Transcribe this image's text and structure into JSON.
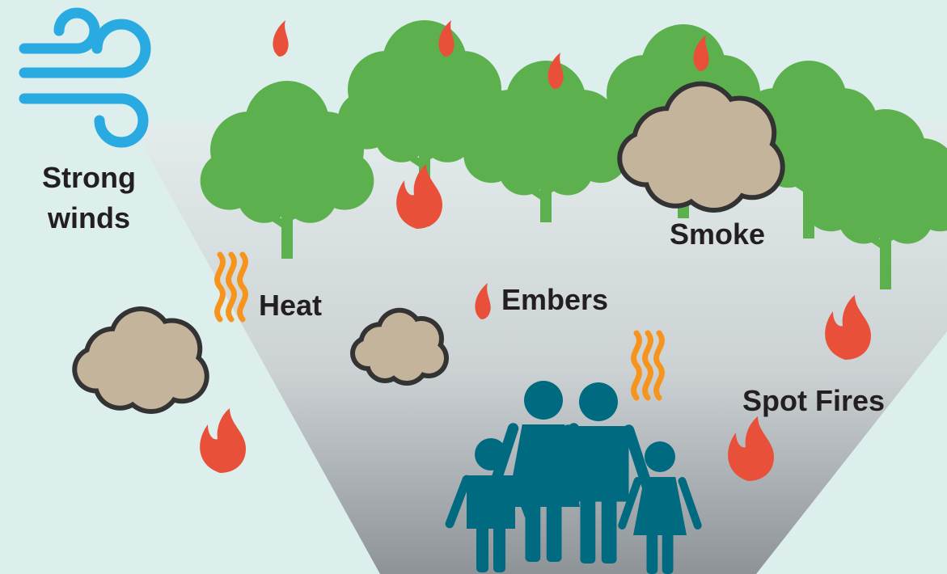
{
  "wind_label": {
    "line1": "Strong",
    "line2": "winds"
  },
  "heat_label": "Heat",
  "embers_label": "Embers",
  "smoke_label": "Smoke",
  "spot_fires_label": "Spot Fires"
}
